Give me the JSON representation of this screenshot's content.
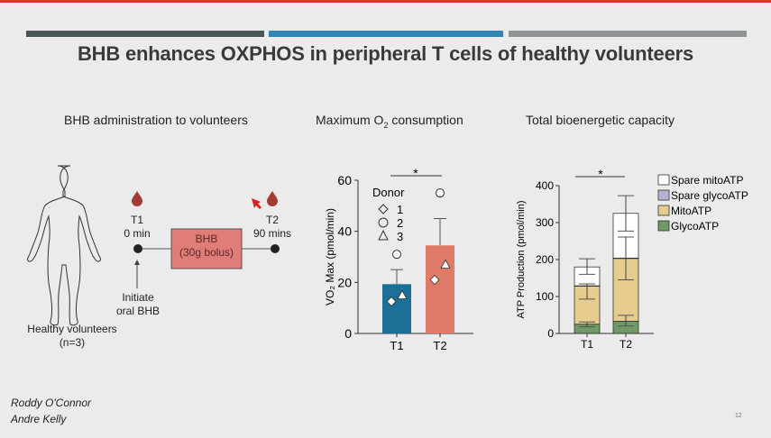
{
  "slide": {
    "title": "BHB enhances OXPHOS in peripheral T cells of healthy volunteers",
    "band_colors": [
      "#4a5557",
      "#2f86b4",
      "#8f9597"
    ],
    "accent": "#d93a2b",
    "authors": [
      "Roddy O'Connor",
      "Andre Kelly"
    ],
    "page_number": "12"
  },
  "schematic": {
    "heading": "BHB administration to volunteers",
    "subject_label": "Healthy volunteers",
    "n_label": "(n=3)",
    "t1_label": "T1",
    "t1_time": "0 min",
    "t2_label": "T2",
    "t2_time": "90 mins",
    "box_line1": "BHB",
    "box_line2": "(30g bolus)",
    "initiate_line1": "Initiate",
    "initiate_line2": "oral BHB",
    "box_color": "#e07d78"
  },
  "chart_data": [
    {
      "type": "bar",
      "title": "Maximum O2 consumption",
      "ylabel": "VO2 Max (pmol/min)",
      "categories": [
        "T1",
        "T2"
      ],
      "values": [
        19.3,
        34.5
      ],
      "error_upper": [
        25,
        45
      ],
      "bar_colors": [
        "#1c6f96",
        "#e07b6a"
      ],
      "ylim": [
        0,
        60
      ],
      "yticks": [
        0,
        20,
        40,
        60
      ],
      "significance": "*",
      "legend_title": "Donor",
      "donors": [
        {
          "name": "1",
          "marker": "diamond",
          "values": [
            12.5,
            21
          ]
        },
        {
          "name": "2",
          "marker": "circle",
          "values": [
            31,
            55
          ]
        },
        {
          "name": "3",
          "marker": "triangle",
          "values": [
            15,
            27
          ]
        }
      ]
    },
    {
      "type": "stacked-bar",
      "title": "Total bioenergetic capacity",
      "ylabel": "ATP Production (pmol/min)",
      "categories": [
        "T1",
        "T2"
      ],
      "ylim": [
        0,
        400
      ],
      "yticks": [
        0,
        100,
        200,
        300,
        400
      ],
      "significance": "*",
      "series": [
        {
          "name": "GlycoATP",
          "color": "#6f9a66",
          "values": [
            25,
            33
          ]
        },
        {
          "name": "MitoATP",
          "color": "#e6cc8f",
          "values": [
            103,
            170
          ]
        },
        {
          "name": "Spare glycoATP",
          "color": "#b4b4d2",
          "values": [
            1,
            1
          ]
        },
        {
          "name": "Spare mitoATP",
          "color": "#ffffff",
          "values": [
            51,
            121
          ]
        }
      ],
      "legend_order": [
        "Spare mitoATP",
        "Spare glycoATP",
        "MitoATP",
        "GlycoATP"
      ],
      "error_bars": [
        {
          "category": "T1",
          "center": 25,
          "low": 18,
          "high": 31
        },
        {
          "category": "T1",
          "center": 128,
          "low": 93,
          "high": 134
        },
        {
          "category": "T1",
          "center": 180,
          "low": 160,
          "high": 202
        },
        {
          "category": "T2",
          "center": 33,
          "low": 20,
          "high": 49
        },
        {
          "category": "T2",
          "center": 203,
          "low": 145,
          "high": 261
        },
        {
          "category": "T2",
          "center": 325,
          "low": 277,
          "high": 373
        }
      ]
    }
  ]
}
